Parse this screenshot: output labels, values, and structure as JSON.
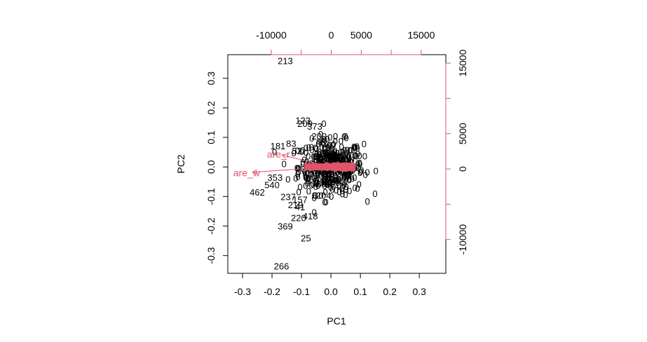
{
  "chart_data": {
    "type": "scatter",
    "title": "",
    "xlabel": "PC1",
    "ylabel": "PC2",
    "xlim": [
      -0.35,
      0.39
    ],
    "ylim": [
      -0.36,
      0.38
    ],
    "grid": false,
    "legend": "none",
    "xticks": [
      "-0.3",
      "-0.2",
      "-0.1",
      "0.0",
      "0.1",
      "0.2",
      "0.3"
    ],
    "xtick_values": [
      -0.3,
      -0.2,
      -0.1,
      0.0,
      0.1,
      0.2,
      0.3
    ],
    "yticks": [
      "-0.3",
      "-0.2",
      "-0.1",
      "0.0",
      "0.1",
      "0.2",
      "0.3"
    ],
    "ytick_values": [
      -0.3,
      -0.2,
      -0.1,
      0.0,
      0.1,
      0.2,
      0.3
    ],
    "top_axis": {
      "ticks": [
        "-10000",
        "0",
        "5000",
        "15000"
      ],
      "tick_values": [
        -10000,
        0,
        5000,
        15000
      ],
      "minor_tick_values": [
        -10000,
        -5000,
        0,
        5000,
        10000,
        15000
      ],
      "range": [
        -17240,
        19100
      ]
    },
    "right_axis": {
      "ticks": [
        "-10000",
        "0",
        "5000",
        "15000"
      ],
      "tick_values": [
        -10000,
        0,
        5000,
        15000
      ],
      "minor_tick_values": [
        -10000,
        -5000,
        0,
        5000,
        10000,
        15000
      ],
      "range": [
        -14800,
        16200
      ]
    },
    "labeled_points": [
      {
        "label": "213",
        "x": -0.155,
        "y": 0.36
      },
      {
        "label": "123",
        "x": -0.095,
        "y": 0.158
      },
      {
        "label": "209",
        "x": -0.088,
        "y": 0.148
      },
      {
        "label": "373",
        "x": -0.055,
        "y": 0.138
      },
      {
        "label": "200",
        "x": -0.04,
        "y": 0.105
      },
      {
        "label": "83",
        "x": -0.135,
        "y": 0.08
      },
      {
        "label": "181",
        "x": -0.18,
        "y": 0.072
      },
      {
        "label": "52",
        "x": -0.115,
        "y": 0.055
      },
      {
        "label": "353",
        "x": -0.19,
        "y": -0.035
      },
      {
        "label": "540",
        "x": -0.2,
        "y": -0.06
      },
      {
        "label": "462",
        "x": -0.25,
        "y": -0.085
      },
      {
        "label": "237",
        "x": -0.145,
        "y": -0.1
      },
      {
        "label": "157",
        "x": -0.105,
        "y": -0.11
      },
      {
        "label": "219",
        "x": -0.12,
        "y": -0.128
      },
      {
        "label": "41",
        "x": -0.105,
        "y": -0.135
      },
      {
        "label": "418",
        "x": -0.07,
        "y": -0.165
      },
      {
        "label": "220",
        "x": -0.11,
        "y": -0.172
      },
      {
        "label": "369",
        "x": -0.155,
        "y": -0.2
      },
      {
        "label": "25",
        "x": -0.085,
        "y": -0.24
      },
      {
        "label": "266",
        "x": -0.168,
        "y": -0.335
      },
      {
        "label": "204",
        "x": -0.025,
        "y": -0.095
      }
    ],
    "point_cloud": {
      "center_x": 0.0,
      "center_y": 0.0,
      "spread_x": 0.055,
      "spread_y": 0.045,
      "count": 420,
      "color": "#000000"
    },
    "loadings": [
      {
        "label": "are_w",
        "x": -0.265,
        "y": -0.018,
        "color": "#df536b"
      },
      {
        "label": "are_r",
        "x": -0.165,
        "y": 0.04,
        "color": "#df536b"
      }
    ],
    "variable_cluster_color": "#df536b",
    "axis_color_secondary": "#df536b"
  }
}
